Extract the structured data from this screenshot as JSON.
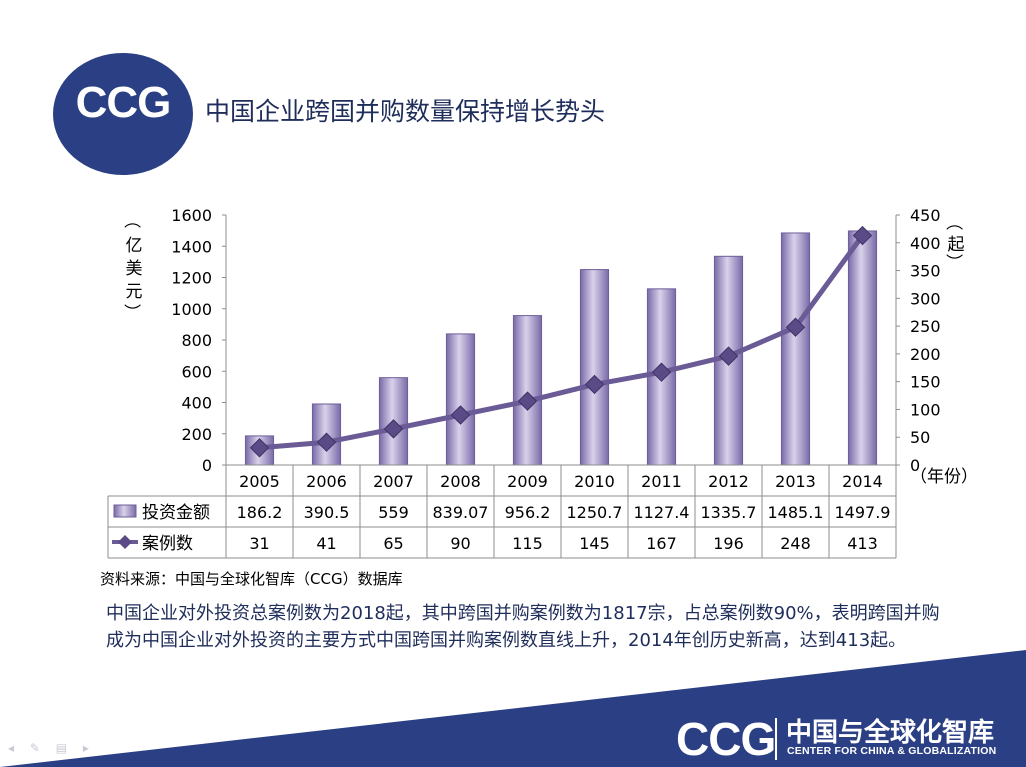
{
  "header": {
    "logo_text": "CCG",
    "title": "中国企业跨国并购数量保持增长势头"
  },
  "chart_data": {
    "type": "bar",
    "categories": [
      "2005",
      "2006",
      "2007",
      "2008",
      "2009",
      "2010",
      "2011",
      "2012",
      "2013",
      "2014"
    ],
    "series": [
      {
        "name": "投资金额",
        "type": "bar",
        "axis": "left",
        "values": [
          186.2,
          390.5,
          559,
          839.07,
          956.2,
          1250.7,
          1127.4,
          1335.7,
          1485.1,
          1497.9
        ],
        "labels": [
          "186.2",
          "390.5",
          "559",
          "839.07",
          "956.2",
          "1250.7",
          "1127.4",
          "1335.7",
          "1485.1",
          "1497.9"
        ]
      },
      {
        "name": "案例数",
        "type": "line",
        "axis": "right",
        "values": [
          31,
          41,
          65,
          90,
          115,
          145,
          167,
          196,
          248,
          413
        ],
        "labels": [
          "31",
          "41",
          "65",
          "90",
          "115",
          "145",
          "167",
          "196",
          "248",
          "413"
        ]
      }
    ],
    "left_axis": {
      "label": "（亿美元）",
      "min": 0,
      "max": 1600,
      "step": 200,
      "ticks": [
        "0",
        "200",
        "400",
        "600",
        "800",
        "1000",
        "1200",
        "1400",
        "1600"
      ]
    },
    "right_axis": {
      "label": "（起）",
      "min": 0,
      "max": 450,
      "step": 50,
      "ticks": [
        "0",
        "50",
        "100",
        "150",
        "200",
        "250",
        "300",
        "350",
        "400",
        "450"
      ]
    },
    "x_axis_label": "（年份）",
    "data_table": true,
    "colors": {
      "bar": "#9d8fc0",
      "bar_edge": "#6e5f99",
      "line": "#6a5a95",
      "axis": "#8c8c8c"
    }
  },
  "source_note": "资料来源：中国与全球化智库（CCG）数据库",
  "summary": "中国企业对外投资总案例数为2018起，其中跨国并购案例数为1817宗，占总案例数90%，表明跨国并购成为中国企业对外投资的主要方式中国跨国并购案例数直线上升，2014年创历史新高，达到413起。",
  "footer": {
    "logo_text": "CCG",
    "name_cn": "中国与全球化智库",
    "name_en": "CENTER FOR CHINA & GLOBALIZATION",
    "band_color": "#2b3f84"
  }
}
